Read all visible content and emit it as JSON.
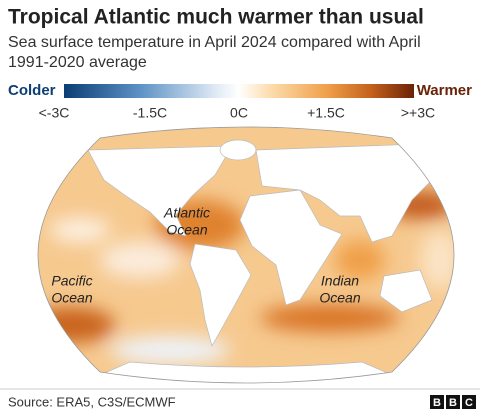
{
  "header": {
    "title": "Tropical Atlantic much warmer than usual",
    "subtitle": [
      "Sea surface temperature in April 2024 compared with April",
      "1991-2020 average"
    ]
  },
  "legend": {
    "colder": "Colder",
    "warmer": "Warmer",
    "ticks": [
      "<-3C",
      "-1.5C",
      "0C",
      "+1.5C",
      ">+3C"
    ]
  },
  "map": {
    "labels": [
      [
        "Atlantic",
        "Ocean"
      ],
      [
        "Pacific",
        "Ocean"
      ],
      [
        "Indian",
        "Ocean"
      ]
    ]
  },
  "footer": {
    "source": "Source: ERA5, C3S/ECMWF",
    "logo": [
      "B",
      "B",
      "C"
    ]
  }
}
